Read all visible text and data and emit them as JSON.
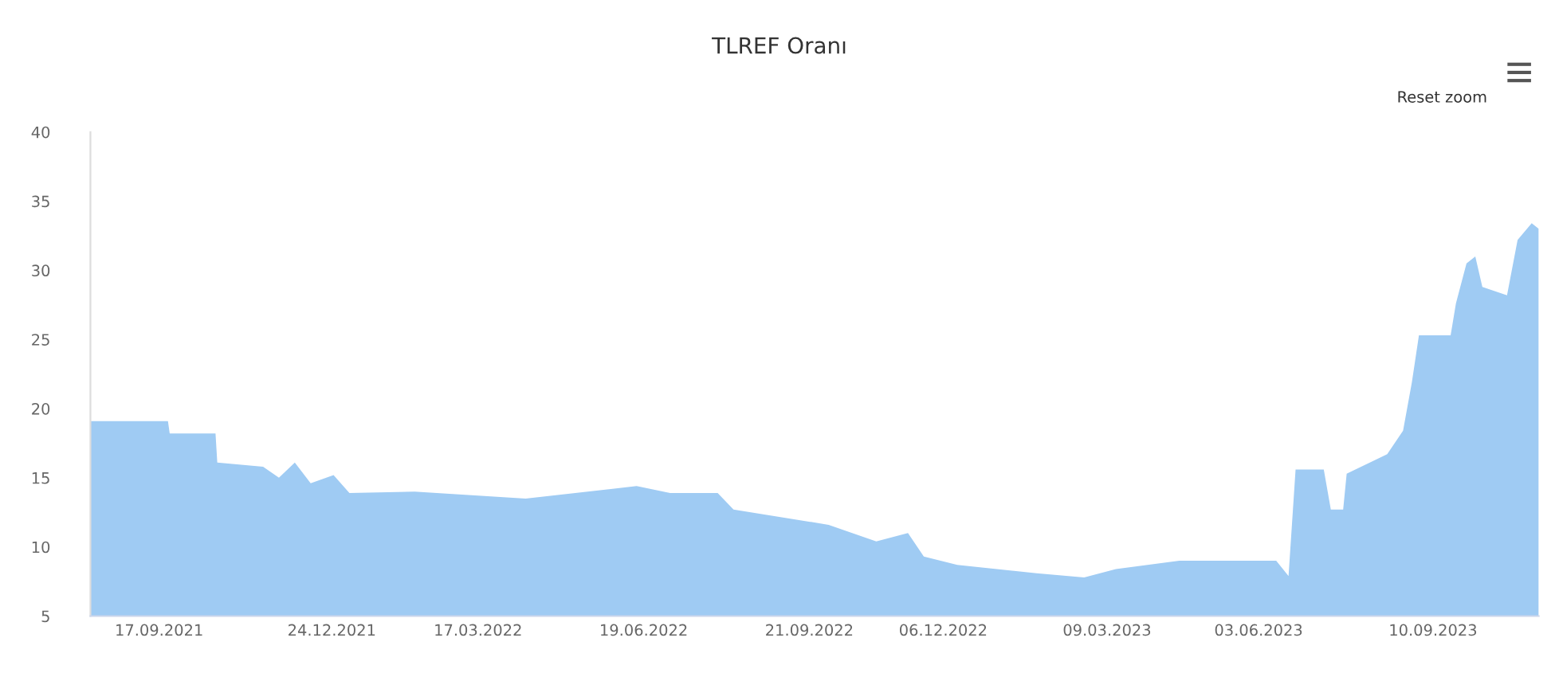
{
  "chart_data": {
    "type": "area",
    "title": "TLREF Oranı",
    "annotations": [
      "Reset zoom"
    ],
    "x": [
      "2021-08-09",
      "2021-09-22",
      "2021-09-23",
      "2021-10-19",
      "2021-10-20",
      "2021-11-15",
      "2021-11-24",
      "2021-12-03",
      "2021-12-12",
      "2021-12-25",
      "2022-01-03",
      "2022-02-09",
      "2022-04-13",
      "2022-06-15",
      "2022-07-04",
      "2022-07-31",
      "2022-08-09",
      "2022-10-02",
      "2022-10-29",
      "2022-11-16",
      "2022-11-25",
      "2022-12-14",
      "2023-01-28",
      "2023-02-24",
      "2023-03-14",
      "2023-04-19",
      "2023-06-13",
      "2023-06-20",
      "2023-06-24",
      "2023-07-10",
      "2023-07-14",
      "2023-07-21",
      "2023-07-23",
      "2023-08-15",
      "2023-08-24",
      "2023-08-29",
      "2023-09-02",
      "2023-09-20",
      "2023-09-23",
      "2023-09-29",
      "2023-10-04",
      "2023-10-08",
      "2023-10-22",
      "2023-10-28",
      "2023-11-05",
      "2023-11-09"
    ],
    "series": [
      {
        "color": "#9fcbf3",
        "values": [
          19.1,
          19.1,
          18.2,
          18.2,
          16.1,
          15.8,
          15.0,
          16.1,
          14.6,
          15.2,
          13.9,
          14.0,
          13.5,
          14.4,
          13.9,
          13.9,
          12.7,
          11.6,
          10.4,
          11.0,
          9.3,
          8.7,
          8.1,
          7.8,
          8.4,
          9.0,
          9.0,
          7.9,
          15.6,
          15.6,
          12.7,
          12.7,
          15.3,
          16.7,
          18.4,
          21.9,
          25.3,
          25.3,
          27.6,
          30.5,
          31.0,
          28.8,
          28.2,
          32.2,
          33.4,
          33.0
        ]
      }
    ],
    "xlim": [
      "2021-08-09",
      "2023-11-09"
    ],
    "xticks": [
      {
        "value": "2021-09-17",
        "label": "17.09.2021"
      },
      {
        "value": "2021-12-24",
        "label": "24.12.2021"
      },
      {
        "value": "2022-03-17",
        "label": "17.03.2022"
      },
      {
        "value": "2022-06-19",
        "label": "19.06.2022"
      },
      {
        "value": "2022-09-21",
        "label": "21.09.2022"
      },
      {
        "value": "2022-12-06",
        "label": "06.12.2022"
      },
      {
        "value": "2023-03-09",
        "label": "09.03.2023"
      },
      {
        "value": "2023-06-03",
        "label": "03.06.2023"
      },
      {
        "value": "2023-09-10",
        "label": "10.09.2023"
      }
    ],
    "ylim": [
      5,
      40
    ],
    "yticks": [
      5,
      10,
      15,
      20,
      25,
      30,
      35,
      40
    ],
    "grid": false
  }
}
